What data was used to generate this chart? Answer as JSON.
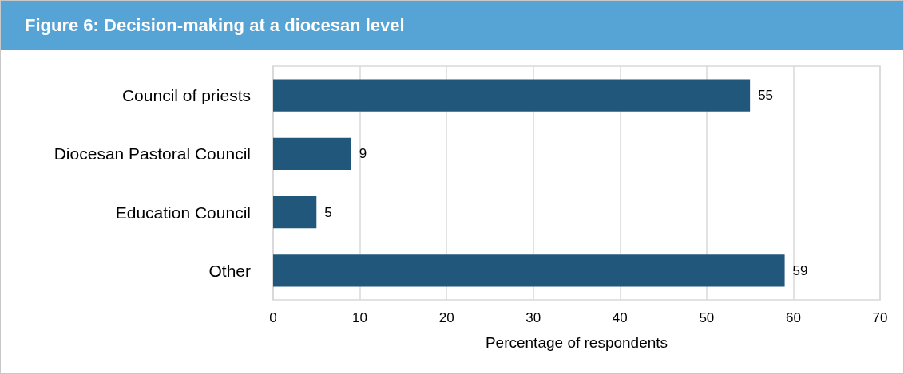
{
  "chart_data": {
    "type": "bar",
    "title": "Figure 6: Decision-making at a diocesan level",
    "orientation": "horizontal",
    "categories": [
      "Council of priests",
      "Diocesan Pastoral Council",
      "Education Council",
      "Other"
    ],
    "values": [
      55,
      9,
      5,
      59
    ],
    "color": "#20577b",
    "data_labels": true,
    "xlabel": "Percentage of respondents",
    "xlim": [
      0,
      70
    ],
    "xticks": [
      0,
      10,
      20,
      30,
      40,
      50,
      60,
      70
    ],
    "grid": "x"
  }
}
